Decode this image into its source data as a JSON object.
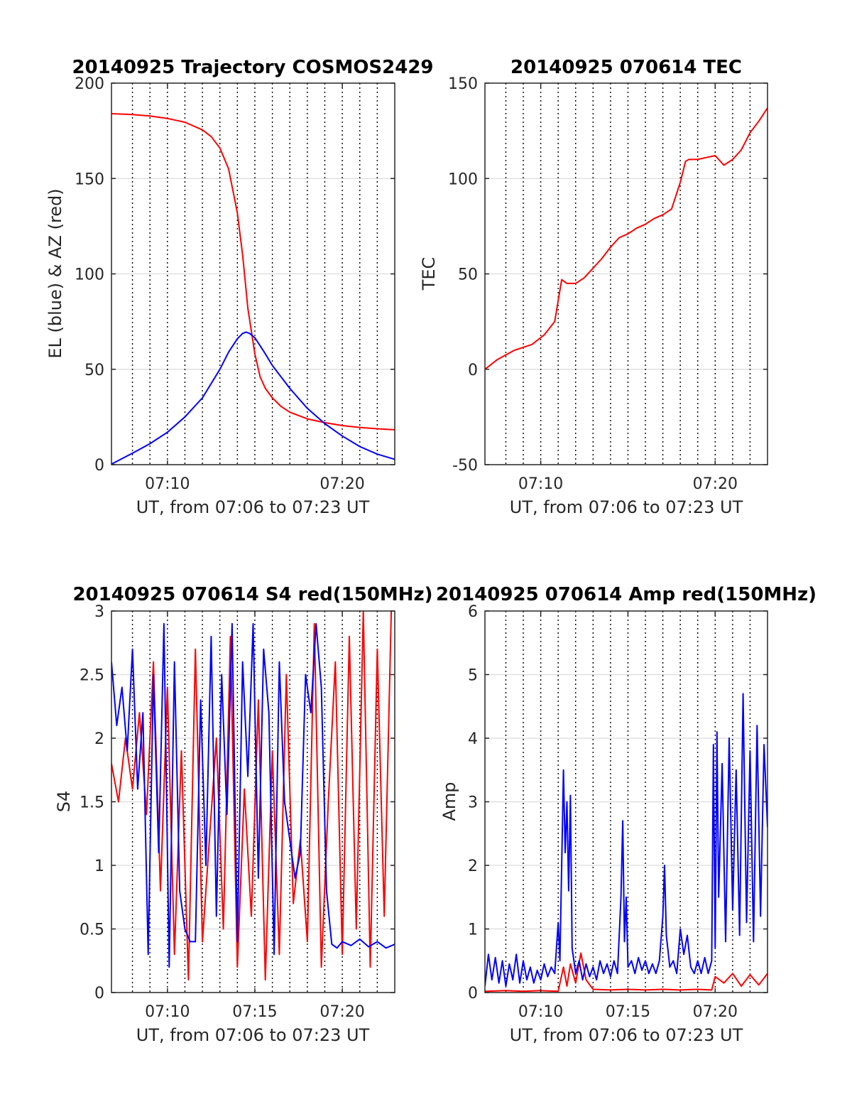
{
  "colors": {
    "azimuth": "#ff0000",
    "elevation": "#0000ff",
    "tec": "#ff0000",
    "red_series": "#ff0000",
    "blue_series": "#0000ff",
    "grid": "#dcdcdc",
    "vline": "#000000"
  },
  "chart_data": [
    {
      "id": "trajectory",
      "type": "line",
      "title": "20140925 Trajectory COSMOS2429",
      "xlabel": "UT, from 07:06 to 07:23 UT",
      "ylabel": "EL (blue) & AZ (red)",
      "xlim": [
        6.8,
        23.0
      ],
      "ylim": [
        0,
        200
      ],
      "xticks": [
        10,
        20
      ],
      "xtick_labels": [
        "07:10",
        "07:20"
      ],
      "yticks": [
        0,
        50,
        100,
        150,
        200
      ],
      "ytick_labels": [
        "0",
        "50",
        "100",
        "150",
        "200"
      ],
      "vlines": [
        8,
        9,
        10,
        11,
        12,
        13,
        14,
        15,
        16,
        17,
        18,
        19,
        20,
        21,
        22
      ],
      "grid": "horizontal",
      "series": [
        {
          "color": "#ff0000",
          "x": [
            6.8,
            8,
            9,
            10,
            11,
            12,
            12.5,
            13,
            13.5,
            14,
            14.3,
            14.6,
            15,
            15.3,
            15.6,
            16,
            16.5,
            17,
            18,
            19,
            20,
            21,
            22,
            23
          ],
          "y": [
            184,
            183.5,
            182.8,
            181.5,
            179.5,
            175.5,
            172,
            166,
            155,
            132,
            110,
            82,
            58,
            46,
            40,
            35,
            30.5,
            27.5,
            24,
            22,
            20.5,
            19.5,
            18.8,
            18.3
          ]
        },
        {
          "color": "#0000ff",
          "x": [
            6.8,
            8,
            9,
            10,
            11,
            12,
            13,
            13.5,
            14,
            14.3,
            14.5,
            14.7,
            15,
            15.5,
            16,
            17,
            18,
            19,
            20,
            21,
            22,
            23
          ],
          "y": [
            0.3,
            6,
            11,
            17,
            25,
            35,
            50,
            59,
            66,
            68.8,
            69.5,
            68.8,
            66.5,
            59.5,
            52,
            40,
            29.5,
            21.5,
            15,
            9.5,
            5.5,
            2.8
          ]
        }
      ]
    },
    {
      "id": "tec",
      "type": "line",
      "title": "20140925 070614 TEC",
      "xlabel": "UT, from 07:06 to 07:23 UT",
      "ylabel": "TEC",
      "xlim": [
        6.8,
        23.0
      ],
      "ylim": [
        -50,
        150
      ],
      "xticks": [
        10,
        20
      ],
      "xtick_labels": [
        "07:10",
        "07:20"
      ],
      "yticks": [
        -50,
        0,
        50,
        100,
        150
      ],
      "ytick_labels": [
        "-50",
        "0",
        "50",
        "100",
        "150"
      ],
      "vlines": [
        8,
        9,
        10,
        11,
        12,
        13,
        14,
        15,
        16,
        17,
        18,
        19,
        20,
        21,
        22
      ],
      "grid": "horizontal",
      "series": [
        {
          "color": "#ff0000",
          "x": [
            6.8,
            7.5,
            8.5,
            9.5,
            10.2,
            10.8,
            11.0,
            11.2,
            11.5,
            12,
            12.5,
            13,
            13.5,
            14,
            14.5,
            15,
            15.5,
            16,
            16.5,
            17,
            17.5,
            18,
            18.3,
            18.5,
            19,
            19.5,
            20,
            20.5,
            21,
            21.5,
            22,
            22.5,
            23.0
          ],
          "y": [
            0,
            5,
            10,
            13,
            18,
            25,
            36,
            47,
            45,
            45,
            48,
            53,
            58,
            64,
            69,
            71,
            74,
            76,
            79,
            81,
            84,
            98,
            109,
            110,
            110,
            111,
            112,
            107,
            110,
            115,
            124,
            130,
            137
          ]
        }
      ]
    },
    {
      "id": "s4",
      "type": "line",
      "title": "20140925 070614 S4 red(150MHz)",
      "xlabel": "UT, from 07:06 to 07:23 UT",
      "ylabel": "S4",
      "xlim": [
        6.8,
        23.0
      ],
      "ylim": [
        0,
        3
      ],
      "xticks": [
        10,
        15,
        20
      ],
      "xtick_labels": [
        "07:10",
        "07:15",
        "07:20"
      ],
      "yticks": [
        0,
        0.5,
        1,
        1.5,
        2,
        2.5,
        3
      ],
      "ytick_labels": [
        "0",
        "0.5",
        "1",
        "1.5",
        "2",
        "2.5",
        "3"
      ],
      "vlines": [
        8,
        9,
        10,
        11,
        12,
        13,
        14,
        15,
        16,
        17,
        18,
        19,
        20,
        21,
        22
      ],
      "grid": "horizontal",
      "series": [
        {
          "color": "#ff0000",
          "x": [
            6.8,
            7.2,
            7.6,
            8.0,
            8.4,
            8.8,
            9.2,
            9.6,
            10.0,
            10.4,
            10.8,
            11.2,
            11.6,
            12.0,
            12.4,
            12.8,
            13.2,
            13.6,
            14.0,
            14.4,
            14.8,
            15.2,
            15.6,
            16.0,
            16.4,
            16.8,
            17.2,
            17.6,
            18.0,
            18.4,
            18.8,
            19.2,
            19.6,
            20.0,
            20.4,
            20.8,
            21.2,
            21.6,
            22.0,
            22.4,
            22.8
          ],
          "y": [
            1.8,
            1.5,
            2.0,
            1.6,
            2.2,
            1.4,
            2.6,
            0.8,
            2.4,
            0.3,
            1.9,
            0.1,
            2.7,
            0.4,
            1.2,
            2.0,
            0.5,
            2.8,
            0.2,
            1.6,
            0.6,
            2.3,
            0.1,
            1.9,
            0.3,
            2.5,
            0.7,
            1.2,
            0.4,
            2.9,
            0.2,
            1.5,
            2.6,
            0.3,
            2.8,
            0.5,
            3.0,
            0.2,
            2.7,
            0.6,
            3.0
          ]
        },
        {
          "color": "#0000ff",
          "x": [
            6.8,
            7.1,
            7.4,
            7.7,
            8.0,
            8.3,
            8.6,
            8.9,
            9.2,
            9.5,
            9.8,
            10.1,
            10.4,
            10.7,
            11.0,
            11.3,
            11.6,
            11.9,
            12.2,
            12.5,
            12.8,
            13.1,
            13.4,
            13.7,
            14.0,
            14.3,
            14.6,
            14.9,
            15.2,
            15.5,
            15.8,
            16.1,
            16.4,
            16.7,
            17.0,
            17.3,
            17.6,
            17.9,
            18.2,
            18.5,
            18.8,
            19.1,
            19.4,
            19.7,
            20.0,
            20.5,
            21.0,
            21.5,
            22.0,
            22.5,
            23.0
          ],
          "y": [
            2.6,
            2.1,
            2.4,
            1.9,
            2.7,
            1.6,
            2.2,
            0.3,
            2.5,
            1.1,
            2.9,
            0.2,
            2.6,
            0.8,
            0.5,
            0.4,
            0.4,
            2.3,
            1.0,
            2.8,
            0.6,
            2.5,
            1.4,
            2.9,
            0.4,
            2.6,
            1.7,
            2.9,
            0.9,
            2.7,
            2.2,
            0.3,
            2.6,
            1.5,
            1.2,
            0.9,
            1.1,
            2.5,
            2.2,
            2.9,
            2.4,
            0.8,
            0.38,
            0.35,
            0.4,
            0.37,
            0.42,
            0.36,
            0.4,
            0.35,
            0.38
          ]
        }
      ]
    },
    {
      "id": "amp",
      "type": "line",
      "title": "20140925 070614 Amp red(150MHz)",
      "xlabel": "UT, from 07:06 to 07:23 UT",
      "ylabel": "Amp",
      "xlim": [
        6.8,
        23.0
      ],
      "ylim": [
        0,
        6
      ],
      "xticks": [
        10,
        15,
        20
      ],
      "xtick_labels": [
        "07:10",
        "07:15",
        "07:20"
      ],
      "yticks": [
        0,
        1,
        2,
        3,
        4,
        5,
        6
      ],
      "ytick_labels": [
        "0",
        "1",
        "2",
        "3",
        "4",
        "5",
        "6"
      ],
      "vlines": [
        8,
        9,
        10,
        11,
        12,
        13,
        14,
        15,
        16,
        17,
        18,
        19,
        20,
        21,
        22
      ],
      "grid": "horizontal",
      "series": [
        {
          "color": "#ff0000",
          "x": [
            6.8,
            8,
            9,
            10,
            11,
            11.3,
            11.5,
            11.7,
            12.0,
            12.3,
            12.6,
            13,
            14,
            15,
            16,
            17,
            18,
            19,
            19.8,
            20.0,
            20.5,
            21,
            21.5,
            22,
            22.5,
            23.0
          ],
          "y": [
            0.02,
            0.03,
            0.02,
            0.03,
            0.02,
            0.4,
            0.1,
            0.45,
            0.15,
            0.62,
            0.2,
            0.05,
            0.04,
            0.05,
            0.04,
            0.05,
            0.04,
            0.05,
            0.04,
            0.25,
            0.15,
            0.3,
            0.1,
            0.28,
            0.12,
            0.3
          ]
        },
        {
          "color": "#0000ff",
          "x": [
            6.8,
            7.0,
            7.2,
            7.4,
            7.6,
            7.8,
            8.0,
            8.2,
            8.4,
            8.6,
            8.8,
            9.0,
            9.2,
            9.4,
            9.6,
            9.8,
            10.0,
            10.2,
            10.4,
            10.6,
            10.8,
            11.0,
            11.1,
            11.2,
            11.3,
            11.4,
            11.5,
            11.6,
            11.7,
            11.8,
            12.0,
            12.2,
            12.4,
            12.6,
            12.8,
            13.0,
            13.2,
            13.4,
            13.6,
            13.8,
            14.0,
            14.2,
            14.4,
            14.6,
            14.7,
            14.8,
            14.9,
            15.0,
            15.2,
            15.4,
            15.6,
            15.8,
            16.0,
            16.2,
            16.4,
            16.6,
            16.8,
            17.0,
            17.1,
            17.2,
            17.4,
            17.6,
            17.8,
            18.0,
            18.2,
            18.4,
            18.6,
            18.8,
            19.0,
            19.2,
            19.4,
            19.6,
            19.8,
            19.9,
            20.0,
            20.1,
            20.2,
            20.4,
            20.6,
            20.8,
            21.0,
            21.2,
            21.4,
            21.6,
            21.8,
            22.0,
            22.2,
            22.4,
            22.6,
            22.8,
            23.0
          ],
          "y": [
            0.1,
            0.6,
            0.2,
            0.55,
            0.15,
            0.5,
            0.1,
            0.45,
            0.2,
            0.6,
            0.15,
            0.5,
            0.2,
            0.4,
            0.15,
            0.35,
            0.2,
            0.45,
            0.25,
            0.4,
            0.3,
            1.1,
            0.5,
            2.0,
            3.5,
            2.2,
            3.0,
            1.6,
            3.1,
            0.7,
            0.3,
            0.5,
            0.2,
            0.45,
            0.25,
            0.4,
            0.2,
            0.5,
            0.3,
            0.45,
            0.25,
            0.5,
            0.3,
            1.5,
            2.7,
            0.8,
            1.5,
            0.4,
            0.5,
            0.3,
            0.55,
            0.35,
            0.5,
            0.3,
            0.45,
            0.3,
            0.5,
            1.2,
            2.0,
            0.9,
            0.4,
            0.5,
            0.3,
            1.0,
            0.6,
            0.9,
            0.4,
            0.3,
            0.5,
            0.3,
            0.55,
            0.3,
            0.5,
            3.9,
            0.7,
            4.1,
            1.5,
            3.6,
            0.8,
            4.0,
            1.3,
            3.5,
            0.9,
            4.7,
            1.1,
            3.8,
            0.8,
            4.2,
            1.2,
            3.9,
            2.6
          ]
        }
      ]
    }
  ]
}
